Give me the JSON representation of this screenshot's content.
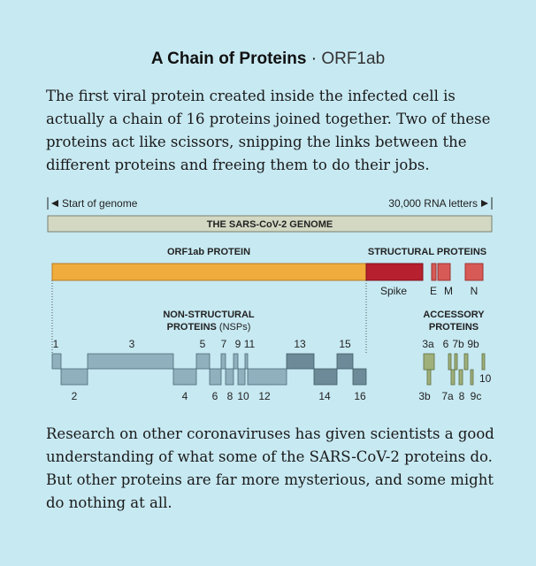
{
  "title": {
    "main": "A Chain of Proteins",
    "separator": " · ",
    "sub": "ORF1ab"
  },
  "intro": "The first viral protein created inside the infected cell is actually a chain of 16 proteins joined together. Two of these proteins act like scissors, snipping the links between the different proteins and freeing them to do their jobs.",
  "genome": {
    "start_label": "Start of genome",
    "end_label": "30,000 RNA letters",
    "bar_label": "THE SARS-CoV-2 GENOME",
    "orf1ab_label": "ORF1ab PROTEIN",
    "structural_label": "STRUCTURAL PROTEINS",
    "structural_items": [
      "Spike",
      "E",
      "M",
      "N"
    ]
  },
  "nsp": {
    "heading_line1": "NON-STRUCTURAL",
    "heading_line2": "PROTEINS",
    "heading_line2_suffix": "(NSPs)",
    "top_labels": [
      "1",
      "3",
      "5",
      "7",
      "9",
      "11",
      "13",
      "15"
    ],
    "bottom_labels": [
      "2",
      "4",
      "6",
      "8",
      "10",
      "12",
      "14",
      "16"
    ]
  },
  "accessory": {
    "heading_line1": "ACCESSORY",
    "heading_line2": "PROTEINS",
    "top_labels": [
      "3a",
      "6",
      "7b",
      "9b"
    ],
    "bottom_labels": [
      "3b",
      "7a",
      "8",
      "9c"
    ],
    "side_label": "10"
  },
  "closing": "Research on other coronaviruses has given scientists a good understanding of what some of the SARS-CoV-2 proteins do. But other proteins are far more mysterious, and some might do nothing at all.",
  "colors": {
    "background": "#c7e9f2",
    "genome_bar": "#d3d8c3",
    "orf1ab": "#f0ac3c",
    "spike": "#b7202e",
    "structural_small": "#d75a57",
    "nsp_light": "#90b0be",
    "nsp_dark": "#6d8a98",
    "accessory": "#9fb07a"
  }
}
